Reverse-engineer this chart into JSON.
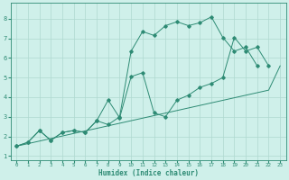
{
  "line1_x": [
    0,
    1,
    2,
    3,
    4,
    5,
    6,
    7,
    8,
    9,
    10,
    11,
    12,
    13,
    14,
    15,
    16,
    17,
    18,
    19,
    20,
    21,
    22,
    23
  ],
  "line1_y": [
    1.5,
    1.63,
    1.76,
    1.89,
    2.02,
    2.15,
    2.28,
    2.41,
    2.54,
    2.67,
    2.8,
    2.93,
    3.06,
    3.19,
    3.32,
    3.45,
    3.58,
    3.71,
    3.84,
    3.97,
    4.1,
    4.23,
    4.36,
    5.6
  ],
  "line2_x": [
    0,
    1,
    2,
    3,
    4,
    5,
    6,
    7,
    8,
    9,
    10,
    11,
    12,
    13,
    14,
    15,
    16,
    17,
    18,
    19,
    20,
    21,
    22
  ],
  "line2_y": [
    1.5,
    1.7,
    2.3,
    1.8,
    2.2,
    2.3,
    2.2,
    2.8,
    3.85,
    2.95,
    5.05,
    5.25,
    3.2,
    3.0,
    3.85,
    4.1,
    4.5,
    4.7,
    5.0,
    7.05,
    6.35,
    6.55,
    5.6
  ],
  "line3_x": [
    0,
    1,
    2,
    3,
    4,
    5,
    6,
    7,
    8,
    9,
    10,
    11,
    12,
    13,
    14,
    15,
    16,
    17,
    18,
    19,
    20,
    21,
    22
  ],
  "line3_y": [
    1.5,
    1.7,
    2.3,
    1.8,
    2.2,
    2.3,
    2.2,
    2.8,
    2.6,
    3.0,
    6.35,
    7.35,
    7.15,
    7.65,
    7.85,
    7.65,
    7.8,
    8.1,
    7.05,
    6.35,
    6.55,
    5.6,
    null
  ],
  "color": "#2e8b74",
  "bg_color": "#cff0ea",
  "grid_color": "#afd8d0",
  "xlabel": "Humidex (Indice chaleur)",
  "ylim": [
    0.8,
    8.8
  ],
  "xlim": [
    -0.5,
    23.5
  ],
  "yticks": [
    1,
    2,
    3,
    4,
    5,
    6,
    7,
    8
  ],
  "xticks": [
    0,
    1,
    2,
    3,
    4,
    5,
    6,
    7,
    8,
    9,
    10,
    11,
    12,
    13,
    14,
    15,
    16,
    17,
    18,
    19,
    20,
    21,
    22,
    23
  ]
}
